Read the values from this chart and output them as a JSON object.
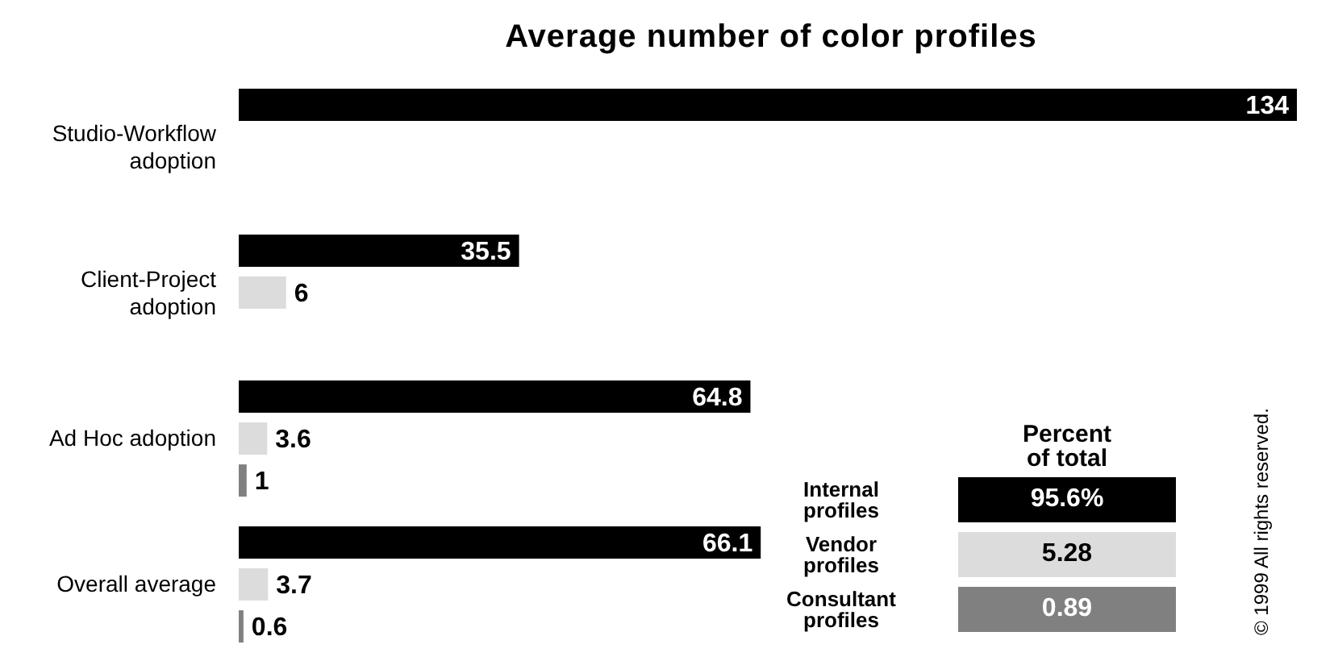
{
  "chart_data": {
    "type": "bar",
    "orientation": "horizontal",
    "title": "Average number of color profiles",
    "categories": [
      "Studio-Workflow adoption",
      "Client-Project adoption",
      "Ad Hoc adoption",
      "Overall average"
    ],
    "series": [
      {
        "name": "Internal profiles",
        "color": "#000000",
        "values": [
          134,
          35.5,
          64.8,
          66.1
        ]
      },
      {
        "name": "Vendor profiles",
        "color": "#dcdcdc",
        "values": [
          null,
          6,
          3.6,
          3.7
        ]
      },
      {
        "name": "Consultant profiles",
        "color": "#808080",
        "values": [
          null,
          null,
          1,
          0.6
        ]
      }
    ],
    "data_labels": true,
    "legend": "bottom right",
    "legend_title": "Percent of total",
    "annotations": [
      "95.6%",
      "5.28",
      "0.89",
      "© 1999 All rights reserved."
    ]
  }
}
